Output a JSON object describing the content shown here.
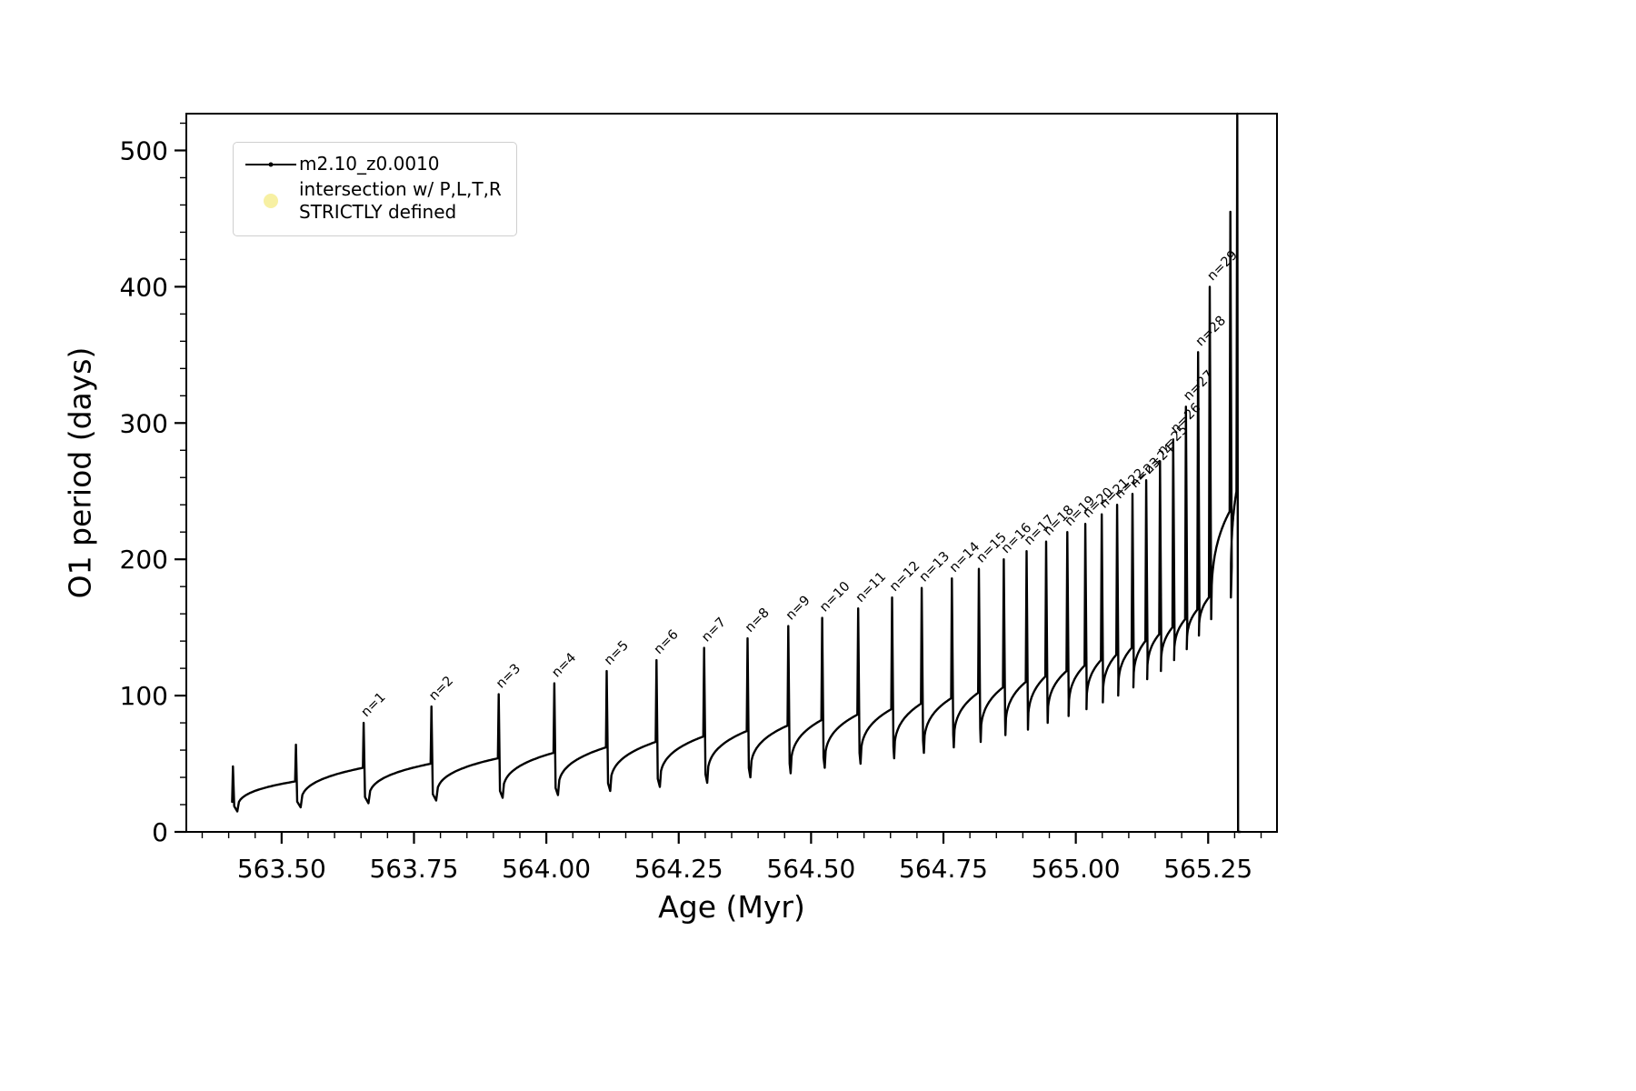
{
  "chart_data": {
    "type": "line",
    "title": "",
    "xlabel": "Age (Myr)",
    "ylabel": "O1 period (days)",
    "series_name": "m2.10_z0.0010",
    "line_color": "#000000",
    "xlim": [
      563.32,
      565.38
    ],
    "ylim": [
      0,
      527
    ],
    "x_ticks": {
      "values": [
        563.5,
        563.75,
        564.0,
        564.25,
        564.5,
        564.75,
        565.0,
        565.25
      ],
      "labels": [
        "563.50",
        "563.75",
        "564.00",
        "564.25",
        "564.50",
        "564.75",
        "565.00",
        "565.25"
      ]
    },
    "y_ticks": {
      "values": [
        0,
        100,
        200,
        300,
        400,
        500
      ],
      "labels": [
        "0",
        "100",
        "200",
        "300",
        "400",
        "500"
      ]
    },
    "x_minor_step": 0.05,
    "y_minor_step": 20,
    "pulse_label_rotation_deg": 45,
    "pulses": [
      {
        "label": "",
        "t": 563.408,
        "top": 48,
        "pre": 22,
        "dip": 15
      },
      {
        "label": "",
        "t": 563.527,
        "top": 64,
        "pre": 37,
        "dip": 18
      },
      {
        "label": "n=1",
        "t": 563.655,
        "top": 80,
        "pre": 47,
        "dip": 21
      },
      {
        "label": "n=2",
        "t": 563.783,
        "top": 92,
        "pre": 50,
        "dip": 23
      },
      {
        "label": "n=3",
        "t": 563.91,
        "top": 101,
        "pre": 54,
        "dip": 25
      },
      {
        "label": "n=4",
        "t": 564.015,
        "top": 109,
        "pre": 58,
        "dip": 27
      },
      {
        "label": "n=5",
        "t": 564.114,
        "top": 118,
        "pre": 62,
        "dip": 30
      },
      {
        "label": "n=6",
        "t": 564.208,
        "top": 126,
        "pre": 66,
        "dip": 33
      },
      {
        "label": "n=7",
        "t": 564.298,
        "top": 135,
        "pre": 70,
        "dip": 36
      },
      {
        "label": "n=8",
        "t": 564.38,
        "top": 142,
        "pre": 74,
        "dip": 40
      },
      {
        "label": "n=9",
        "t": 564.457,
        "top": 151,
        "pre": 78,
        "dip": 43
      },
      {
        "label": "n=10",
        "t": 564.521,
        "top": 157,
        "pre": 82,
        "dip": 47
      },
      {
        "label": "n=11",
        "t": 564.589,
        "top": 164,
        "pre": 86,
        "dip": 50
      },
      {
        "label": "n=12",
        "t": 564.653,
        "top": 172,
        "pre": 90,
        "dip": 54
      },
      {
        "label": "n=13",
        "t": 564.709,
        "top": 179,
        "pre": 94,
        "dip": 58
      },
      {
        "label": "n=14",
        "t": 564.766,
        "top": 186,
        "pre": 98,
        "dip": 62
      },
      {
        "label": "n=15",
        "t": 564.817,
        "top": 193,
        "pre": 102,
        "dip": 66
      },
      {
        "label": "n=16",
        "t": 564.864,
        "top": 200,
        "pre": 106,
        "dip": 71
      },
      {
        "label": "n=17",
        "t": 564.907,
        "top": 206,
        "pre": 110,
        "dip": 75
      },
      {
        "label": "n=18",
        "t": 564.944,
        "top": 213,
        "pre": 114,
        "dip": 80
      },
      {
        "label": "n=19",
        "t": 564.984,
        "top": 220,
        "pre": 118,
        "dip": 85
      },
      {
        "label": "n=20",
        "t": 565.018,
        "top": 226,
        "pre": 122,
        "dip": 90
      },
      {
        "label": "n=21",
        "t": 565.049,
        "top": 233,
        "pre": 126,
        "dip": 95
      },
      {
        "label": "n=22",
        "t": 565.078,
        "top": 240,
        "pre": 130,
        "dip": 100
      },
      {
        "label": "n=23",
        "t": 565.107,
        "top": 248,
        "pre": 135,
        "dip": 106
      },
      {
        "label": "n=24",
        "t": 565.133,
        "top": 258,
        "pre": 140,
        "dip": 112
      },
      {
        "label": "n=25",
        "t": 565.159,
        "top": 272,
        "pre": 145,
        "dip": 118
      },
      {
        "label": "n=26",
        "t": 565.184,
        "top": 288,
        "pre": 150,
        "dip": 126
      },
      {
        "label": "n=27",
        "t": 565.208,
        "top": 312,
        "pre": 156,
        "dip": 134
      },
      {
        "label": "n=28",
        "t": 565.231,
        "top": 352,
        "pre": 163,
        "dip": 144
      },
      {
        "label": "n=29",
        "t": 565.253,
        "top": 400,
        "pre": 172,
        "dip": 156
      },
      {
        "label": "",
        "t": 565.292,
        "top": 455,
        "pre": 235,
        "dip": 172
      },
      {
        "label": "",
        "t": 565.305,
        "top": 527,
        "pre": 250,
        "dip": 0,
        "end": true
      }
    ]
  },
  "legend": {
    "entry1": {
      "label": "m2.10_z0.0010",
      "marker": "line-dot",
      "color": "#000000"
    },
    "entry2": {
      "line1": "intersection w/ P,L,T,R",
      "line2": "STRICTLY defined",
      "marker": "dot",
      "color": "#f7f0a3"
    }
  }
}
